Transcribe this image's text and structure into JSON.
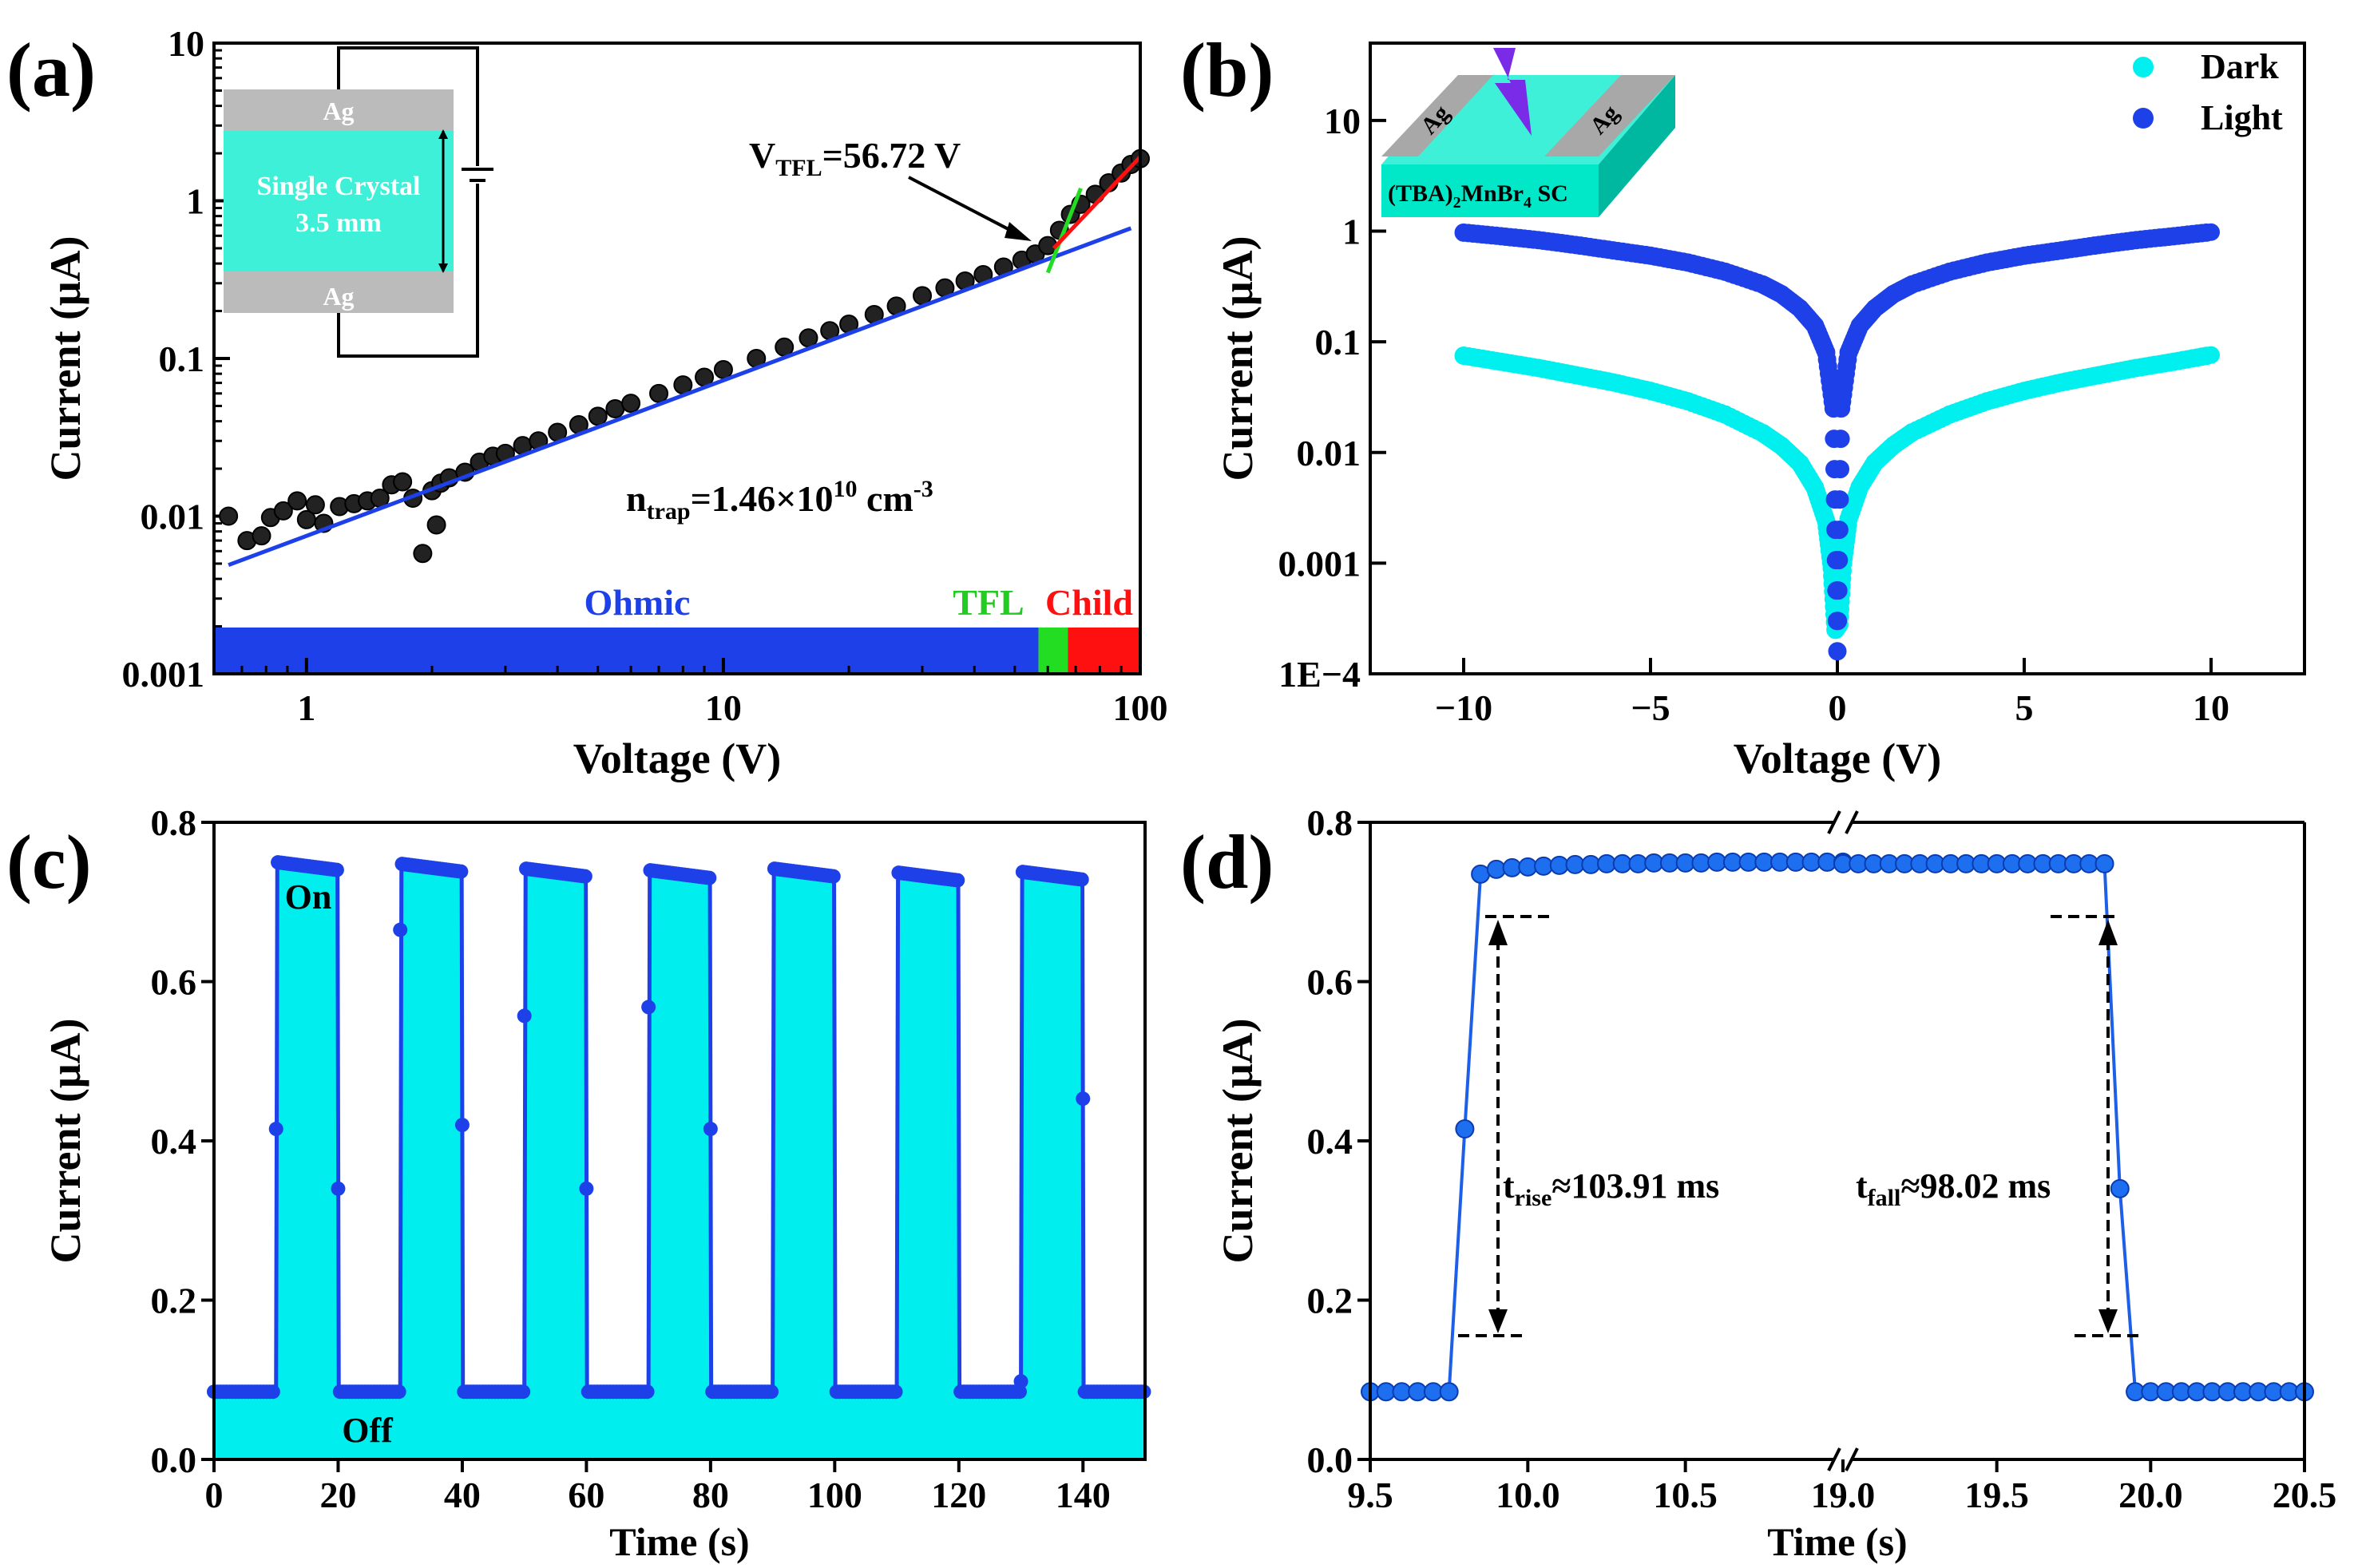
{
  "figure": {
    "colors": {
      "dark": "#00F0F0",
      "light": "#1E40E8",
      "ohmic": "#1E40E8",
      "tfl": "#22DD22",
      "child": "#FF1010",
      "fill_c": "#00EEEE",
      "marker": "#1E5FE8"
    }
  },
  "chart_data": [
    {
      "id": "a",
      "type": "scatter",
      "panel_label": "(a)",
      "xlabel": "Voltage (V)",
      "ylabel": "Current (μA)",
      "xscale": "log",
      "yscale": "log",
      "xlim": [
        0.6,
        100
      ],
      "ylim": [
        0.001,
        10
      ],
      "xtick_labels": [
        "1",
        "10",
        "100"
      ],
      "ytick_labels": [
        "0.001",
        "0.01",
        "0.1",
        "1",
        "10"
      ],
      "series": [
        {
          "name": "I-V data",
          "color": "#111111",
          "x": [
            0.65,
            0.72,
            0.78,
            0.82,
            0.88,
            0.95,
            1.0,
            1.05,
            1.1,
            1.2,
            1.3,
            1.4,
            1.5,
            1.6,
            1.7,
            1.8,
            1.9,
            2.0,
            2.05,
            2.1,
            2.2,
            2.4,
            2.6,
            2.8,
            3.0,
            3.3,
            3.6,
            4.0,
            4.5,
            5,
            5.5,
            6,
            7,
            8,
            9,
            10,
            12,
            14,
            16,
            18,
            20,
            23,
            26,
            30,
            34,
            38,
            42,
            47,
            52,
            56,
            60,
            64,
            68,
            72,
            78,
            84,
            90,
            95,
            100
          ],
          "y": [
            0.01,
            0.007,
            0.0075,
            0.0098,
            0.0108,
            0.0125,
            0.0095,
            0.0118,
            0.009,
            0.0115,
            0.012,
            0.0125,
            0.013,
            0.0158,
            0.0165,
            0.013,
            0.0058,
            0.0145,
            0.0088,
            0.0162,
            0.0175,
            0.019,
            0.022,
            0.024,
            0.025,
            0.028,
            0.03,
            0.034,
            0.038,
            0.043,
            0.048,
            0.052,
            0.06,
            0.068,
            0.076,
            0.085,
            0.1,
            0.118,
            0.135,
            0.15,
            0.165,
            0.19,
            0.215,
            0.25,
            0.28,
            0.31,
            0.34,
            0.38,
            0.42,
            0.46,
            0.52,
            0.65,
            0.82,
            0.95,
            1.1,
            1.3,
            1.5,
            1.7,
            1.85
          ]
        }
      ],
      "fits": [
        {
          "name": "Ohmic fit",
          "color": "#1E40E8",
          "x": [
            0.65,
            95
          ],
          "y": [
            0.0049,
            0.67
          ]
        },
        {
          "name": "TFL fit",
          "color": "#22DD22",
          "x": [
            60,
            72
          ],
          "y": [
            0.35,
            1.2
          ]
        },
        {
          "name": "Child fit",
          "color": "#FF1010",
          "x": [
            62,
            100
          ],
          "y": [
            0.5,
            1.9
          ]
        }
      ],
      "regions": [
        {
          "label": "Ohmic",
          "from": 0.6,
          "to": 57,
          "color": "#1E40E8"
        },
        {
          "label": "TFL",
          "from": 57,
          "to": 67,
          "color": "#22DD22"
        },
        {
          "label": "Child",
          "from": 67,
          "to": 100,
          "color": "#FF1010"
        }
      ],
      "annotations": {
        "vtfl_main": "V",
        "vtfl_sub": "TFL",
        "vtfl_value": "=56.72 V",
        "ntrap_main": "n",
        "ntrap_sub": "trap",
        "ntrap_value": "=1.46×10",
        "ntrap_exp": "10",
        "ntrap_unit": " cm",
        "ntrap_unit_exp": "-3"
      },
      "inset": {
        "top_label": "Ag",
        "bottom_label": "Ag",
        "crystal_label": "Single Crystal",
        "thickness": "3.5 mm"
      }
    },
    {
      "id": "b",
      "type": "scatter",
      "panel_label": "(b)",
      "xlabel": "Voltage (V)",
      "ylabel": "Current (μA)",
      "xscale": "linear",
      "yscale": "log",
      "xlim": [
        -12.5,
        12.5
      ],
      "ylim": [
        0.0001,
        50
      ],
      "xtick_labels": [
        "−10",
        "−5",
        "0",
        "5",
        "10"
      ],
      "ytick_labels": [
        "1E−4",
        "0.001",
        "0.01",
        "0.1",
        "1",
        "10"
      ],
      "series": [
        {
          "name": "Dark",
          "color": "#00F0F0",
          "x": [
            -10,
            -9,
            -8,
            -7,
            -6,
            -5,
            -4,
            -3,
            -2,
            -1.5,
            -1,
            -0.6,
            -0.3,
            -0.15,
            -0.05,
            0.05,
            0.15,
            0.3,
            0.6,
            1,
            1.5,
            2,
            3,
            4,
            5,
            6,
            7,
            8,
            9,
            10
          ],
          "y": [
            0.075,
            0.066,
            0.058,
            0.05,
            0.043,
            0.036,
            0.029,
            0.022,
            0.015,
            0.0115,
            0.008,
            0.0048,
            0.0024,
            0.0009,
            0.00025,
            0.00028,
            0.001,
            0.0025,
            0.0049,
            0.0081,
            0.0116,
            0.0152,
            0.022,
            0.029,
            0.036,
            0.043,
            0.05,
            0.058,
            0.066,
            0.076
          ]
        },
        {
          "name": "Light",
          "color": "#1E40E8",
          "x": [
            -10,
            -9,
            -8,
            -7,
            -6,
            -5,
            -4,
            -3,
            -2,
            -1.5,
            -1,
            -0.6,
            -0.3,
            -0.1,
            0.0,
            0.1,
            0.3,
            0.6,
            1,
            1.5,
            2,
            3,
            4,
            5,
            6,
            7,
            8,
            9,
            10
          ],
          "y": [
            0.97,
            0.9,
            0.83,
            0.75,
            0.67,
            0.6,
            0.52,
            0.43,
            0.33,
            0.27,
            0.2,
            0.14,
            0.08,
            0.025,
            0.00016,
            0.025,
            0.08,
            0.14,
            0.2,
            0.27,
            0.33,
            0.43,
            0.52,
            0.6,
            0.67,
            0.75,
            0.83,
            0.9,
            0.98
          ]
        }
      ],
      "legend": [
        "Dark",
        "Light"
      ],
      "inset": {
        "electrode_left": "Ag",
        "electrode_right": "Ag",
        "sample_main": "(TBA)",
        "sample_sub": "2",
        "sample_mid": "MnBr",
        "sample_sub2": "4",
        "sample_end": " SC"
      }
    },
    {
      "id": "c",
      "type": "line",
      "panel_label": "(c)",
      "xlabel": "Time (s)",
      "ylabel": "Current (μA)",
      "xlim": [
        0,
        150
      ],
      "ylim": [
        0,
        0.8
      ],
      "xtick_labels": [
        "0",
        "20",
        "40",
        "60",
        "80",
        "100",
        "120",
        "140"
      ],
      "ytick_labels": [
        "0.0",
        "0.2",
        "0.4",
        "0.6",
        "0.8"
      ],
      "off_level": 0.085,
      "cycles": [
        {
          "on": 10,
          "off": 20,
          "high": 0.75,
          "rise_pt": 0.415,
          "fall_pt": 0.34
        },
        {
          "on": 30,
          "off": 40,
          "high": 0.748,
          "rise_pt": 0.665,
          "fall_pt": 0.42
        },
        {
          "on": 50,
          "off": 60,
          "high": 0.742,
          "rise_pt": 0.557,
          "fall_pt": 0.34
        },
        {
          "on": 70,
          "off": 80,
          "high": 0.74,
          "rise_pt": 0.568,
          "fall_pt": 0.415
        },
        {
          "on": 90,
          "off": 100,
          "high": 0.742,
          "rise_pt": 0.0,
          "fall_pt": 0.0
        },
        {
          "on": 110,
          "off": 120,
          "high": 0.737,
          "rise_pt": 0.0,
          "fall_pt": 0.0
        },
        {
          "on": 130,
          "off": 140,
          "high": 0.738,
          "rise_pt": 0.098,
          "fall_pt": 0.453
        }
      ],
      "annotations": {
        "on": "On",
        "off": "Off"
      }
    },
    {
      "id": "d",
      "type": "line",
      "panel_label": "(d)",
      "xlabel": "Time (s)",
      "ylabel": "Current (μA)",
      "xlim": [
        9.5,
        20.5
      ],
      "broken_axis": [
        11.0,
        19.0
      ],
      "ylim": [
        0,
        0.8
      ],
      "xtick_labels": [
        "9.5",
        "10.0",
        "10.5",
        "19.0",
        "19.5",
        "20.0",
        "20.5"
      ],
      "ytick_labels": [
        "0.0",
        "0.2",
        "0.4",
        "0.6",
        "0.8"
      ],
      "segment1": {
        "x": [
          9.5,
          9.55,
          9.6,
          9.65,
          9.7,
          9.75,
          9.8,
          9.85,
          9.9,
          9.95,
          10.0,
          10.05,
          10.1,
          10.15,
          10.2,
          10.25,
          10.3,
          10.35,
          10.4,
          10.45,
          10.5,
          10.55,
          10.6,
          10.65,
          10.7,
          10.75,
          10.8,
          10.85,
          10.9,
          10.95,
          11.0
        ],
        "y": [
          0.085,
          0.085,
          0.085,
          0.085,
          0.085,
          0.085,
          0.415,
          0.735,
          0.741,
          0.743,
          0.744,
          0.745,
          0.746,
          0.747,
          0.747,
          0.748,
          0.748,
          0.748,
          0.749,
          0.749,
          0.749,
          0.749,
          0.75,
          0.75,
          0.75,
          0.75,
          0.75,
          0.75,
          0.75,
          0.75,
          0.75
        ]
      },
      "segment2": {
        "x": [
          19.0,
          19.05,
          19.1,
          19.15,
          19.2,
          19.25,
          19.3,
          19.35,
          19.4,
          19.45,
          19.5,
          19.55,
          19.6,
          19.65,
          19.7,
          19.75,
          19.8,
          19.85,
          19.9,
          19.95,
          20.0,
          20.05,
          20.1,
          20.15,
          20.2,
          20.25,
          20.3,
          20.35,
          20.4,
          20.45,
          20.5
        ],
        "y": [
          0.748,
          0.748,
          0.748,
          0.748,
          0.748,
          0.748,
          0.748,
          0.748,
          0.748,
          0.748,
          0.748,
          0.748,
          0.748,
          0.748,
          0.748,
          0.748,
          0.748,
          0.748,
          0.34,
          0.085,
          0.085,
          0.085,
          0.085,
          0.085,
          0.085,
          0.085,
          0.085,
          0.085,
          0.085,
          0.085,
          0.085
        ]
      },
      "annotations": {
        "rise_main": "t",
        "rise_sub": "rise",
        "rise_value": "≈103.91 ms",
        "fall_main": "t",
        "fall_sub": "fall",
        "fall_value": "≈98.02 ms"
      }
    }
  ]
}
